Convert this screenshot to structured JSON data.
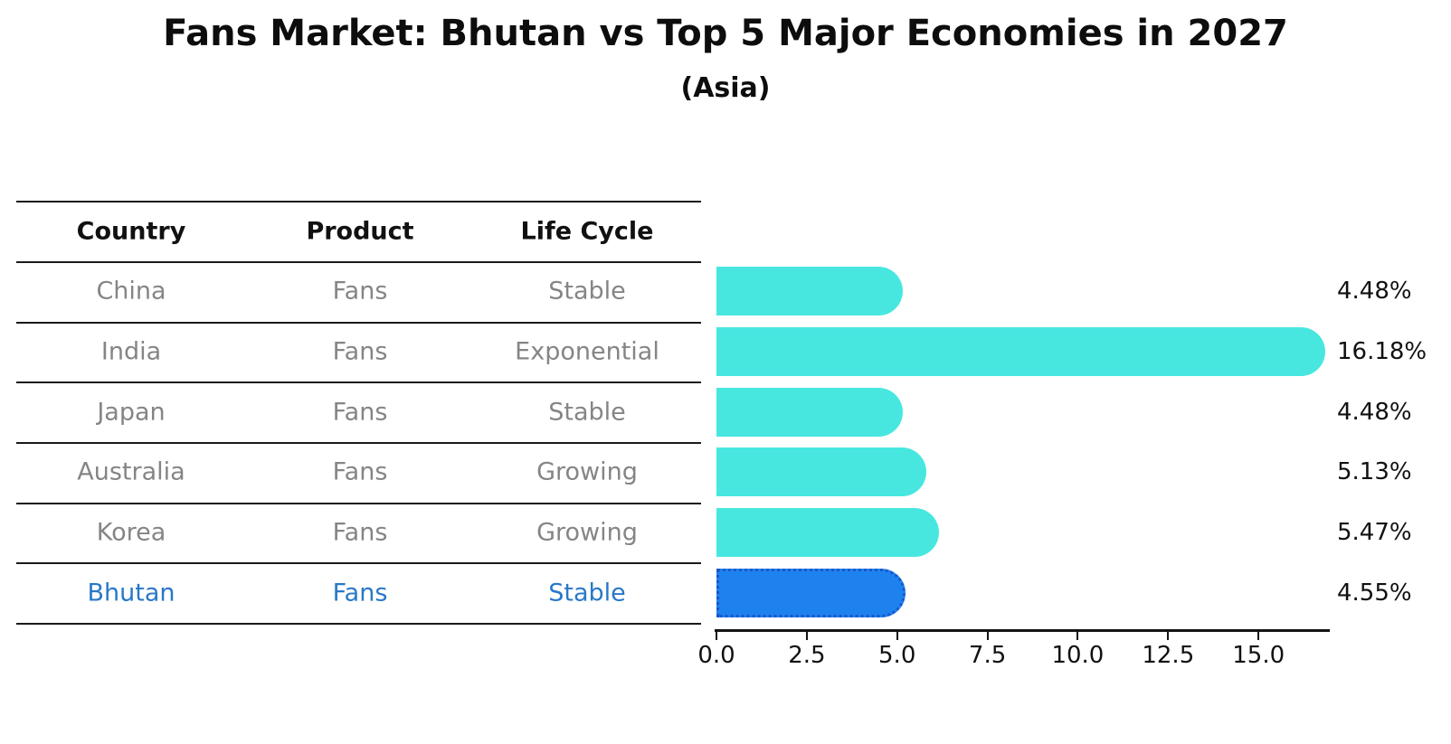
{
  "title": "Fans Market: Bhutan vs Top 5 Major Economies in 2027",
  "subtitle": "(Asia)",
  "table": {
    "headers": [
      "Country",
      "Product",
      "Life Cycle"
    ]
  },
  "chart_data": {
    "type": "bar",
    "orientation": "horizontal",
    "title": "Fans Market: Bhutan vs Top 5 Major Economies in 2027",
    "subtitle": "(Asia)",
    "xlabel": "",
    "ylabel": "",
    "xlim": [
      0,
      16.9
    ],
    "grid": false,
    "legend": "none",
    "categories": [
      "China",
      "India",
      "Japan",
      "Australia",
      "Korea",
      "Bhutan"
    ],
    "values": [
      4.48,
      16.18,
      4.48,
      5.13,
      5.47,
      4.55
    ],
    "rows": [
      {
        "country": "China",
        "product": "Fans",
        "life_cycle": "Stable",
        "value": 4.48,
        "label": "4.48%",
        "highlight": false
      },
      {
        "country": "India",
        "product": "Fans",
        "life_cycle": "Exponential",
        "value": 16.18,
        "label": "16.18%",
        "highlight": false
      },
      {
        "country": "Japan",
        "product": "Fans",
        "life_cycle": "Stable",
        "value": 4.48,
        "label": "4.48%",
        "highlight": false
      },
      {
        "country": "Australia",
        "product": "Fans",
        "life_cycle": "Growing",
        "value": 5.13,
        "label": "5.13%",
        "highlight": false
      },
      {
        "country": "Korea",
        "product": "Fans",
        "life_cycle": "Growing",
        "value": 5.47,
        "label": "5.47%",
        "highlight": false
      },
      {
        "country": "Bhutan",
        "product": "Fans",
        "life_cycle": "Stable",
        "value": 4.55,
        "label": "4.55%",
        "highlight": true
      }
    ],
    "x_ticks": [
      "0.0",
      "2.5",
      "5.0",
      "7.5",
      "10.0",
      "12.5",
      "15.0"
    ],
    "x_tick_values": [
      0,
      2.5,
      5,
      7.5,
      10,
      12.5,
      15
    ],
    "colors": {
      "bar": "#47e7e0",
      "highlight_bar": "#1e82ee",
      "highlight_border": "#1a56cc",
      "highlight_text": "#2878c8",
      "row_text": "#858585",
      "header_text": "#111111",
      "line": "#1a1a1a",
      "axis": "#141414",
      "background": "#ffffff"
    }
  }
}
